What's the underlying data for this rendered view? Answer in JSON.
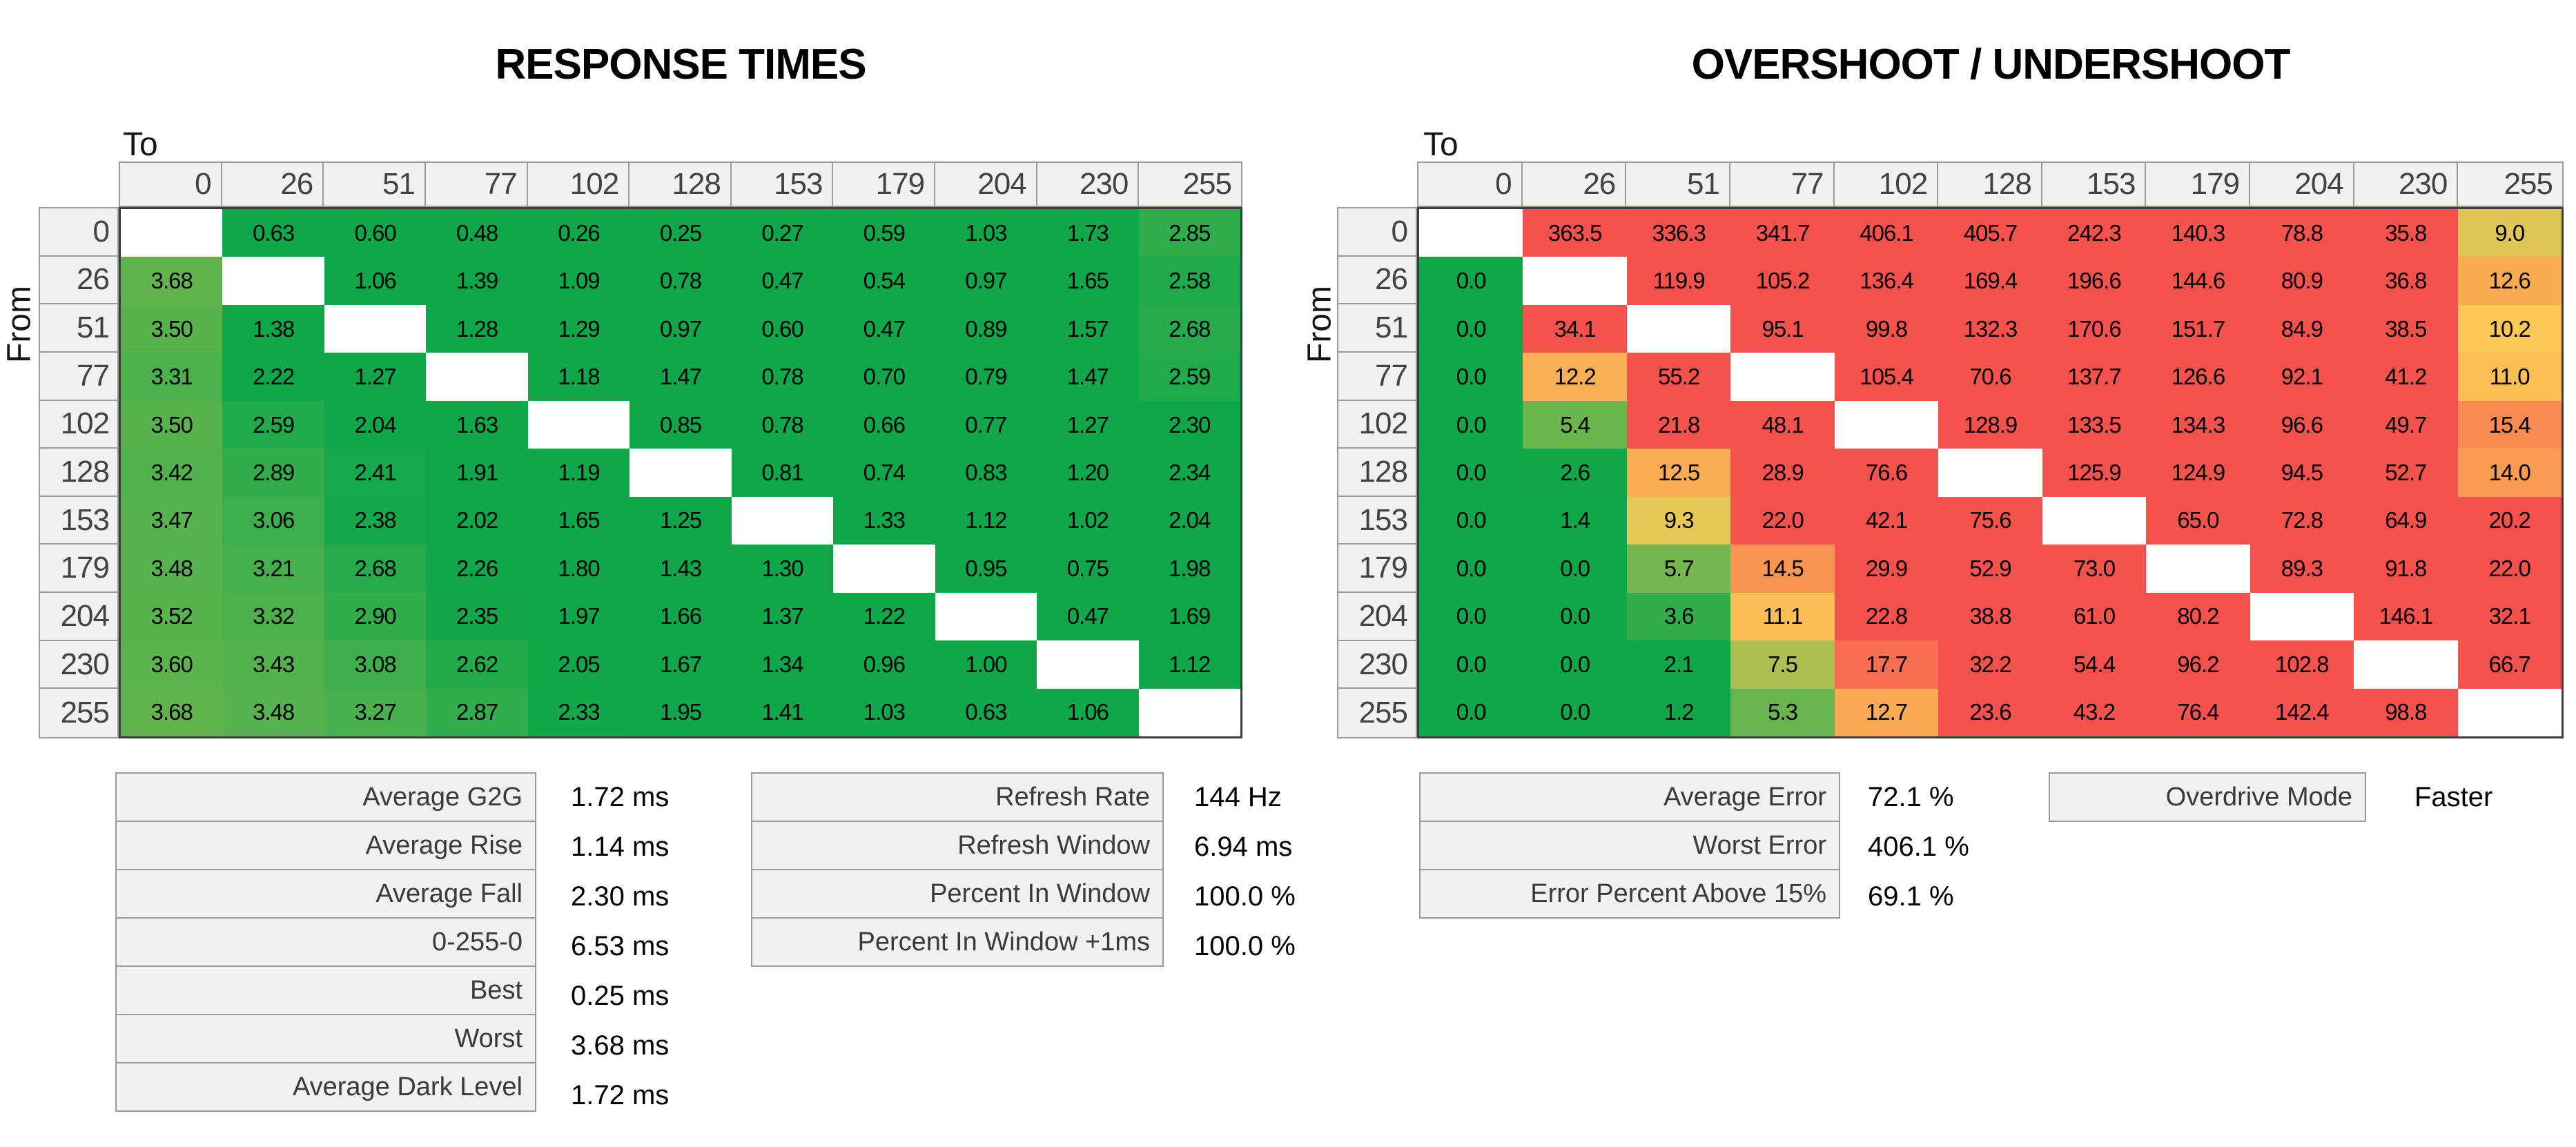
{
  "chart_data": [
    {
      "type": "heatmap",
      "title": "RESPONSE TIMES",
      "unit": "ms",
      "x_label": "To",
      "y_label": "From",
      "categories": [
        "0",
        "26",
        "51",
        "77",
        "102",
        "128",
        "153",
        "179",
        "204",
        "230",
        "255"
      ],
      "rows": [
        [
          null,
          "0.63",
          "0.60",
          "0.48",
          "0.26",
          "0.25",
          "0.27",
          "0.59",
          "1.03",
          "1.73",
          "2.85"
        ],
        [
          "3.68",
          null,
          "1.06",
          "1.39",
          "1.09",
          "0.78",
          "0.47",
          "0.54",
          "0.97",
          "1.65",
          "2.58"
        ],
        [
          "3.50",
          "1.38",
          null,
          "1.28",
          "1.29",
          "0.97",
          "0.60",
          "0.47",
          "0.89",
          "1.57",
          "2.68"
        ],
        [
          "3.31",
          "2.22",
          "1.27",
          null,
          "1.18",
          "1.47",
          "0.78",
          "0.70",
          "0.79",
          "1.47",
          "2.59"
        ],
        [
          "3.50",
          "2.59",
          "2.04",
          "1.63",
          null,
          "0.85",
          "0.78",
          "0.66",
          "0.77",
          "1.27",
          "2.30"
        ],
        [
          "3.42",
          "2.89",
          "2.41",
          "1.91",
          "1.19",
          null,
          "0.81",
          "0.74",
          "0.83",
          "1.20",
          "2.34"
        ],
        [
          "3.47",
          "3.06",
          "2.38",
          "2.02",
          "1.65",
          "1.25",
          null,
          "1.33",
          "1.12",
          "1.02",
          "2.04"
        ],
        [
          "3.48",
          "3.21",
          "2.68",
          "2.26",
          "1.80",
          "1.43",
          "1.30",
          null,
          "0.95",
          "0.75",
          "1.98"
        ],
        [
          "3.52",
          "3.32",
          "2.90",
          "2.35",
          "1.97",
          "1.66",
          "1.37",
          "1.22",
          null,
          "0.47",
          "1.69"
        ],
        [
          "3.60",
          "3.43",
          "3.08",
          "2.62",
          "2.05",
          "1.67",
          "1.34",
          "0.96",
          "1.00",
          null,
          "1.12"
        ],
        [
          "3.68",
          "3.48",
          "3.27",
          "2.87",
          "2.33",
          "1.95",
          "1.41",
          "1.03",
          "0.63",
          "1.06",
          null
        ]
      ]
    },
    {
      "type": "heatmap",
      "title": "OVERSHOOT / UNDERSHOOT",
      "unit": "%",
      "x_label": "To",
      "y_label": "From",
      "categories": [
        "0",
        "26",
        "51",
        "77",
        "102",
        "128",
        "153",
        "179",
        "204",
        "230",
        "255"
      ],
      "rows": [
        [
          null,
          "363.5",
          "336.3",
          "341.7",
          "406.1",
          "405.7",
          "242.3",
          "140.3",
          "78.8",
          "35.8",
          "9.0"
        ],
        [
          "0.0",
          null,
          "119.9",
          "105.2",
          "136.4",
          "169.4",
          "196.6",
          "144.6",
          "80.9",
          "36.8",
          "12.6"
        ],
        [
          "0.0",
          "34.1",
          null,
          "95.1",
          "99.8",
          "132.3",
          "170.6",
          "151.7",
          "84.9",
          "38.5",
          "10.2"
        ],
        [
          "0.0",
          "12.2",
          "55.2",
          null,
          "105.4",
          "70.6",
          "137.7",
          "126.6",
          "92.1",
          "41.2",
          "11.0"
        ],
        [
          "0.0",
          "5.4",
          "21.8",
          "48.1",
          null,
          "128.9",
          "133.5",
          "134.3",
          "96.6",
          "49.7",
          "15.4"
        ],
        [
          "0.0",
          "2.6",
          "12.5",
          "28.9",
          "76.6",
          null,
          "125.9",
          "124.9",
          "94.5",
          "52.7",
          "14.0"
        ],
        [
          "0.0",
          "1.4",
          "9.3",
          "22.0",
          "42.1",
          "75.6",
          null,
          "65.0",
          "72.8",
          "64.9",
          "20.2"
        ],
        [
          "0.0",
          "0.0",
          "5.7",
          "14.5",
          "29.9",
          "52.9",
          "73.0",
          null,
          "89.3",
          "91.8",
          "22.0"
        ],
        [
          "0.0",
          "0.0",
          "3.6",
          "11.1",
          "22.8",
          "38.8",
          "61.0",
          "80.2",
          null,
          "146.1",
          "32.1"
        ],
        [
          "0.0",
          "0.0",
          "2.1",
          "7.5",
          "17.7",
          "32.2",
          "54.4",
          "96.2",
          "102.8",
          null,
          "66.7"
        ],
        [
          "0.0",
          "0.0",
          "1.2",
          "5.3",
          "12.7",
          "23.6",
          "43.2",
          "76.4",
          "142.4",
          "98.8",
          null
        ]
      ]
    }
  ],
  "stats_left": {
    "rows": [
      {
        "label": "Average G2G",
        "value": "1.72 ms"
      },
      {
        "label": "Average Rise",
        "value": "1.14 ms"
      },
      {
        "label": "Average Fall",
        "value": "2.30 ms"
      },
      {
        "label": "0-255-0",
        "value": "6.53 ms"
      },
      {
        "label": "Best",
        "value": "0.25 ms"
      },
      {
        "label": "Worst",
        "value": "3.68 ms"
      },
      {
        "label": "Average Dark Level",
        "value": "1.72 ms"
      }
    ]
  },
  "stats_mid": {
    "rows": [
      {
        "label": "Refresh Rate",
        "value": "144 Hz"
      },
      {
        "label": "Refresh Window",
        "value": "6.94 ms"
      },
      {
        "label": "Percent In Window",
        "value": "100.0 %"
      },
      {
        "label": "Percent In Window +1ms",
        "value": "100.0 %"
      }
    ]
  },
  "stats_right": {
    "rows": [
      {
        "label": "Average Error",
        "value": "72.1 %"
      },
      {
        "label": "Worst Error",
        "value": "406.1 %"
      },
      {
        "label": "Error Percent Above 15%",
        "value": "69.1 %"
      }
    ]
  },
  "overdrive": {
    "label": "Overdrive Mode",
    "value": "Faster"
  },
  "colors": {
    "green": "#10a74a",
    "yellow": "#fccb57",
    "red": "#f5524e",
    "diagonal": "#ffffff",
    "header_bg": "#f1f1f1",
    "header_border": "#9a9a9a",
    "header_text": "#424242",
    "data_outline": "#3c3c3c"
  }
}
